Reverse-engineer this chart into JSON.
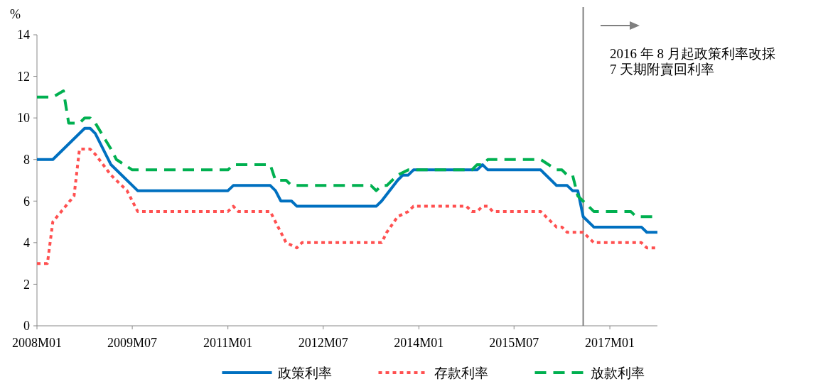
{
  "chart_data": {
    "type": "line",
    "ylabel": "%",
    "xlim": [
      "2008-01",
      "2017-10"
    ],
    "xticks": [
      {
        "value": "2008-01",
        "label": "2008M01"
      },
      {
        "value": "2009-07",
        "label": "2009M07"
      },
      {
        "value": "2011-01",
        "label": "2011M01"
      },
      {
        "value": "2012-07",
        "label": "2012M07"
      },
      {
        "value": "2014-01",
        "label": "2014M01"
      },
      {
        "value": "2015-07",
        "label": "2015M07"
      },
      {
        "value": "2017-01",
        "label": "2017M01"
      }
    ],
    "ylim": [
      0,
      14
    ],
    "yticks": [
      0,
      2,
      4,
      6,
      8,
      10,
      12,
      14
    ],
    "grid": false,
    "legend": "bottom",
    "marker": "none",
    "ref_lines": [
      {
        "axis": "x",
        "value": "2016-08",
        "color": "#808080"
      }
    ],
    "annotations": [
      "2016 年 8 月起政策利率改採\n7 天期附賣回利率"
    ],
    "series": [
      {
        "name": "政策利率",
        "color": "#0070c0",
        "line_style": "solid",
        "x": [
          "2008-01",
          "2008-04",
          "2008-10",
          "2008-11",
          "2008-12",
          "2009-03",
          "2009-08",
          "2011-01",
          "2011-02",
          "2011-09",
          "2011-10",
          "2011-11",
          "2012-01",
          "2012-02",
          "2013-05",
          "2013-06",
          "2013-09",
          "2013-10",
          "2013-11",
          "2013-12",
          "2014-12",
          "2015-01",
          "2015-02",
          "2015-12",
          "2016-03",
          "2016-05",
          "2016-06",
          "2016-07",
          "2016-08",
          "2016-10",
          "2017-07",
          "2017-08",
          "2017-10"
        ],
        "values": [
          8,
          8,
          9.5,
          9.5,
          9.25,
          7.75,
          6.5,
          6.5,
          6.75,
          6.75,
          6.5,
          6,
          6,
          5.75,
          5.75,
          6,
          7,
          7.25,
          7.25,
          7.5,
          7.5,
          7.75,
          7.5,
          7.5,
          6.75,
          6.75,
          6.5,
          6.5,
          5.25,
          4.75,
          4.75,
          4.5,
          4.5
        ]
      },
      {
        "name": "存款利率",
        "color": "#ff5050",
        "line_style": "dotted",
        "x": [
          "2008-01",
          "2008-03",
          "2008-04",
          "2008-08",
          "2008-09",
          "2008-11",
          "2008-12",
          "2009-03",
          "2009-06",
          "2009-08",
          "2011-01",
          "2011-02",
          "2011-03",
          "2011-09",
          "2011-10",
          "2011-12",
          "2012-02",
          "2012-03",
          "2013-06",
          "2013-07",
          "2013-09",
          "2013-11",
          "2013-12",
          "2014-10",
          "2014-11",
          "2014-12",
          "2015-01",
          "2015-02",
          "2015-03",
          "2015-12",
          "2016-03",
          "2016-04",
          "2016-05",
          "2016-08",
          "2016-10",
          "2017-07",
          "2017-08",
          "2017-10"
        ],
        "values": [
          3,
          3,
          5,
          6.25,
          8.5,
          8.5,
          8.25,
          7.25,
          6.5,
          5.5,
          5.5,
          5.75,
          5.5,
          5.5,
          5,
          4,
          3.75,
          4,
          4,
          4.5,
          5.25,
          5.5,
          5.75,
          5.75,
          5.5,
          5.5,
          5.75,
          5.75,
          5.5,
          5.5,
          4.75,
          4.75,
          4.5,
          4.5,
          4,
          4,
          3.75,
          3.75
        ]
      },
      {
        "name": "放款利率",
        "color": "#00b050",
        "line_style": "dashed",
        "x": [
          "2008-01",
          "2008-04",
          "2008-06",
          "2008-07",
          "2008-09",
          "2008-10",
          "2008-11",
          "2008-12",
          "2009-03",
          "2009-04",
          "2009-07",
          "2011-01",
          "2011-02",
          "2011-09",
          "2011-10",
          "2011-12",
          "2012-01",
          "2013-04",
          "2013-05",
          "2013-06",
          "2013-07",
          "2013-09",
          "2013-11",
          "2014-11",
          "2014-12",
          "2015-01",
          "2015-02",
          "2015-12",
          "2016-03",
          "2016-04",
          "2016-05",
          "2016-06",
          "2016-07",
          "2016-10",
          "2017-05",
          "2017-06",
          "2017-10"
        ],
        "values": [
          11,
          11,
          11.3,
          9.75,
          9.75,
          10,
          10,
          9.75,
          8.5,
          8,
          7.5,
          7.5,
          7.75,
          7.75,
          7,
          7,
          6.75,
          6.75,
          6.5,
          6.75,
          6.75,
          7.25,
          7.5,
          7.5,
          7.75,
          7.75,
          8,
          8,
          7.5,
          7.5,
          7.25,
          7.25,
          6.25,
          5.5,
          5.5,
          5.25,
          5.25
        ]
      }
    ]
  }
}
